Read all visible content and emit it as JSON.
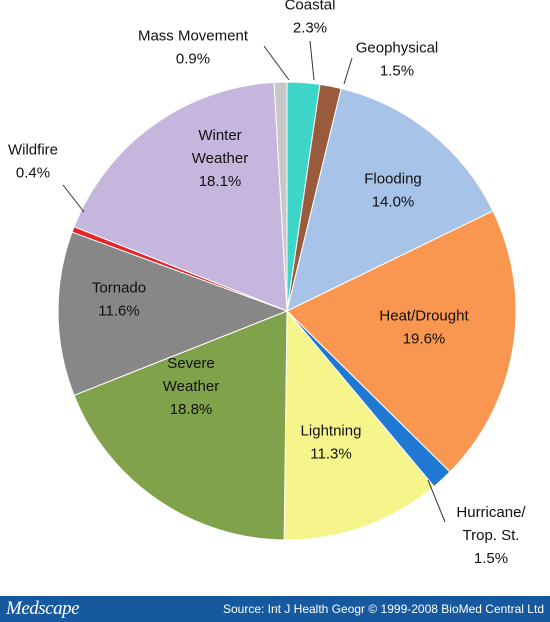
{
  "chart_data": {
    "type": "pie",
    "title": "",
    "slices": [
      {
        "key": "coastal",
        "label": [
          "Coastal"
        ],
        "value": 2.3,
        "display": "2.3%",
        "color": "#3dd6c8"
      },
      {
        "key": "geophysical",
        "label": [
          "Geophysical"
        ],
        "value": 1.5,
        "display": "1.5%",
        "color": "#9a5a3c"
      },
      {
        "key": "flooding",
        "label": [
          "Flooding"
        ],
        "value": 14.0,
        "display": "14.0%",
        "color": "#a7c3e8"
      },
      {
        "key": "heat-drought",
        "label": [
          "Heat/Drought"
        ],
        "value": 19.6,
        "display": "19.6%",
        "color": "#f9964f"
      },
      {
        "key": "hurricane",
        "label": [
          "Hurricane/",
          "Trop. St."
        ],
        "value": 1.5,
        "display": "1.5%",
        "color": "#1f78d1"
      },
      {
        "key": "lightning",
        "label": [
          "Lightning"
        ],
        "value": 11.3,
        "display": "11.3%",
        "color": "#f6f58c"
      },
      {
        "key": "severe-weather",
        "label": [
          "Severe",
          "Weather"
        ],
        "value": 18.8,
        "display": "18.8%",
        "color": "#7fa24b"
      },
      {
        "key": "tornado",
        "label": [
          "Tornado"
        ],
        "value": 11.6,
        "display": "11.6%",
        "color": "#878787"
      },
      {
        "key": "wildfire",
        "label": [
          "Wildfire"
        ],
        "value": 0.4,
        "display": "0.4%",
        "color": "#e3262c"
      },
      {
        "key": "winter-weather",
        "label": [
          "Winter",
          "Weather"
        ],
        "value": 18.1,
        "display": "18.1%",
        "color": "#c5b6dd"
      },
      {
        "key": "mass-movement",
        "label": [
          "Mass Movement"
        ],
        "value": 0.9,
        "display": "0.9%",
        "color": "#c7c7c7"
      }
    ]
  },
  "footer": {
    "brand": "Medscape",
    "source": "Source: Int J Health Geogr © 1999-2008 BioMed Central Ltd"
  }
}
